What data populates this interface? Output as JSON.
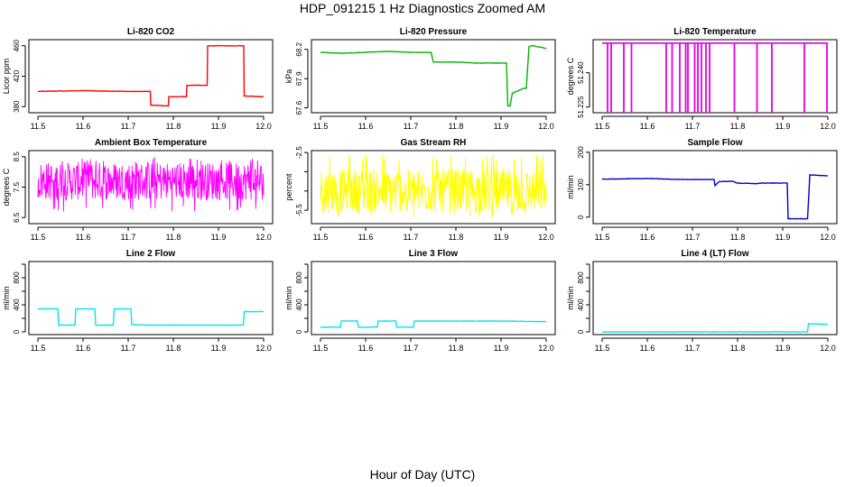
{
  "page": {
    "title": "HDP_091215  1 Hz Diagnostics Zoomed AM",
    "xlabel": "Hour of Day (UTC)"
  },
  "colors": {
    "axis": "#000000",
    "background": "#ffffff"
  },
  "chart_data": [
    {
      "type": "line",
      "title": "Li-820 CO2",
      "ylabel": "Licor ppm",
      "color": "#ff0000",
      "xlim": [
        11.48,
        12.02
      ],
      "ylim": [
        372,
        468
      ],
      "xticks": [
        "11.5",
        "11.6",
        "11.7",
        "11.8",
        "11.9",
        "12.0"
      ],
      "yticks": [
        "380",
        "420",
        "460"
      ],
      "series": [
        {
          "x": [
            11.5,
            11.6,
            11.7,
            11.749,
            11.75,
            11.789,
            11.79,
            11.829,
            11.83,
            11.875,
            11.876,
            11.956,
            11.957,
            12.0
          ],
          "y": [
            400,
            401,
            400,
            400,
            382,
            381,
            393,
            393,
            408,
            408,
            460,
            460,
            394,
            393
          ]
        }
      ]
    },
    {
      "type": "line",
      "title": "Li-820 Pressure",
      "ylabel": "kPa",
      "color": "#00b400",
      "xlim": [
        11.48,
        12.02
      ],
      "ylim": [
        67.55,
        68.3
      ],
      "xticks": [
        "11.5",
        "11.6",
        "11.7",
        "11.8",
        "11.9",
        "12.0"
      ],
      "yticks": [
        "67.6",
        "67.9",
        "68.2"
      ],
      "series": [
        {
          "x": [
            11.5,
            11.55,
            11.6,
            11.65,
            11.7,
            11.745,
            11.75,
            11.8,
            11.85,
            11.9,
            11.912,
            11.915,
            11.92,
            11.925,
            11.95,
            11.956,
            11.962,
            11.97,
            12.0
          ],
          "y": [
            68.17,
            68.16,
            68.17,
            68.18,
            68.17,
            68.17,
            68.07,
            68.07,
            68.06,
            68.06,
            68.06,
            67.62,
            67.62,
            67.75,
            67.8,
            67.8,
            68.23,
            68.24,
            68.21
          ]
        }
      ]
    },
    {
      "type": "line",
      "title": "Li-820 Temperature",
      "ylabel": "degrees C",
      "color": "#e000e0",
      "xlim": [
        11.48,
        12.02
      ],
      "ylim": [
        51.2225,
        51.2545
      ],
      "xticks": [
        "11.5",
        "11.6",
        "11.7",
        "11.8",
        "11.9",
        "12.0"
      ],
      "yticks": [
        "51.225",
        "51.240"
      ],
      "baseline": 51.253,
      "drop_value": 51.22,
      "drops_x": [
        11.512,
        11.52,
        11.548,
        11.565,
        11.642,
        11.655,
        11.672,
        11.685,
        11.69,
        11.705,
        11.712,
        11.72,
        11.73,
        11.738,
        11.793,
        11.843,
        11.876,
        11.948,
        11.998
      ]
    },
    {
      "type": "line",
      "title": "Ambient Box Temperature",
      "ylabel": "degrees C",
      "color": "#ff00ff",
      "xlim": [
        11.48,
        12.02
      ],
      "ylim": [
        6.3,
        8.7
      ],
      "xticks": [
        "11.5",
        "11.6",
        "11.7",
        "11.8",
        "11.9",
        "12.0"
      ],
      "yticks": [
        "6.5",
        "7.5",
        "8.5"
      ],
      "noise": {
        "center": 7.7,
        "low": 6.7,
        "high": 8.5
      }
    },
    {
      "type": "line",
      "title": "Gas Stream RH",
      "ylabel": "percent",
      "color": "#ffff00",
      "xlim": [
        11.48,
        12.02
      ],
      "ylim": [
        -6.2,
        -2.4
      ],
      "xticks": [
        "11.5",
        "11.6",
        "11.7",
        "11.8",
        "11.9",
        "12.0"
      ],
      "yticks": [
        "-5.5",
        "-4.5",
        "-3.5",
        "-2.5"
      ],
      "ytick_labels_shown": [
        "-5.5",
        "-2.5"
      ],
      "noise": {
        "center": -4.5,
        "low": -5.9,
        "high": -2.6
      }
    },
    {
      "type": "line",
      "title": "Sample Flow",
      "ylabel": "ml/min",
      "color": "#0000cc",
      "xlim": [
        11.48,
        12.02
      ],
      "ylim": [
        -20,
        205
      ],
      "xticks": [
        "11.5",
        "11.6",
        "11.7",
        "11.8",
        "11.9",
        "12.0"
      ],
      "yticks": [
        "0",
        "100",
        "200"
      ],
      "series": [
        {
          "x": [
            11.5,
            11.55,
            11.6,
            11.65,
            11.7,
            11.748,
            11.75,
            11.76,
            11.79,
            11.8,
            11.84,
            11.85,
            11.91,
            11.912,
            11.95,
            11.955,
            11.96,
            12.0
          ],
          "y": [
            117,
            118,
            119,
            117,
            116,
            116,
            97,
            110,
            110,
            105,
            103,
            105,
            105,
            -5,
            -5,
            -5,
            130,
            127
          ]
        }
      ]
    },
    {
      "type": "line",
      "title": "Line 2 Flow",
      "ylabel": "ml/min",
      "color": "#00e5ee",
      "xlim": [
        11.48,
        12.02
      ],
      "ylim": [
        -40,
        1040
      ],
      "xticks": [
        "11.5",
        "11.6",
        "11.7",
        "11.8",
        "11.9",
        "12.0"
      ],
      "yticks": [
        "0",
        "200",
        "400",
        "600",
        "800",
        "1000"
      ],
      "ytick_labels_shown": [
        "0",
        "400",
        "800"
      ],
      "series": [
        {
          "x": [
            11.5,
            11.544,
            11.546,
            11.582,
            11.584,
            11.626,
            11.628,
            11.667,
            11.669,
            11.706,
            11.708,
            11.75,
            11.8,
            11.9,
            11.955,
            11.957,
            12.0
          ],
          "y": [
            340,
            340,
            100,
            100,
            340,
            340,
            100,
            100,
            340,
            340,
            110,
            100,
            100,
            100,
            100,
            300,
            300
          ]
        }
      ]
    },
    {
      "type": "line",
      "title": "Line 3 Flow",
      "ylabel": "ml/min",
      "color": "#00e5ee",
      "xlim": [
        11.48,
        12.02
      ],
      "ylim": [
        -40,
        1040
      ],
      "xticks": [
        "11.5",
        "11.6",
        "11.7",
        "11.8",
        "11.9",
        "12.0"
      ],
      "yticks": [
        "0",
        "200",
        "400",
        "600",
        "800",
        "1000"
      ],
      "ytick_labels_shown": [
        "0",
        "400",
        "800"
      ],
      "series": [
        {
          "x": [
            11.5,
            11.544,
            11.546,
            11.582,
            11.584,
            11.626,
            11.628,
            11.667,
            11.669,
            11.706,
            11.708,
            11.8,
            11.9,
            12.0
          ],
          "y": [
            70,
            70,
            160,
            160,
            70,
            70,
            160,
            160,
            70,
            70,
            160,
            160,
            160,
            150
          ]
        }
      ]
    },
    {
      "type": "line",
      "title": "Line 4 (LT) Flow",
      "ylabel": "ml/min",
      "color": "#00e5ee",
      "xlim": [
        11.48,
        12.02
      ],
      "ylim": [
        -40,
        1040
      ],
      "xticks": [
        "11.5",
        "11.6",
        "11.7",
        "11.8",
        "11.9",
        "12.0"
      ],
      "yticks": [
        "0",
        "200",
        "400",
        "600",
        "800",
        "1000"
      ],
      "ytick_labels_shown": [
        "0",
        "400",
        "800"
      ],
      "series": [
        {
          "x": [
            11.5,
            11.6,
            11.7,
            11.8,
            11.9,
            11.955,
            11.957,
            12.0
          ],
          "y": [
            0,
            0,
            0,
            0,
            0,
            0,
            120,
            110
          ]
        }
      ]
    }
  ]
}
